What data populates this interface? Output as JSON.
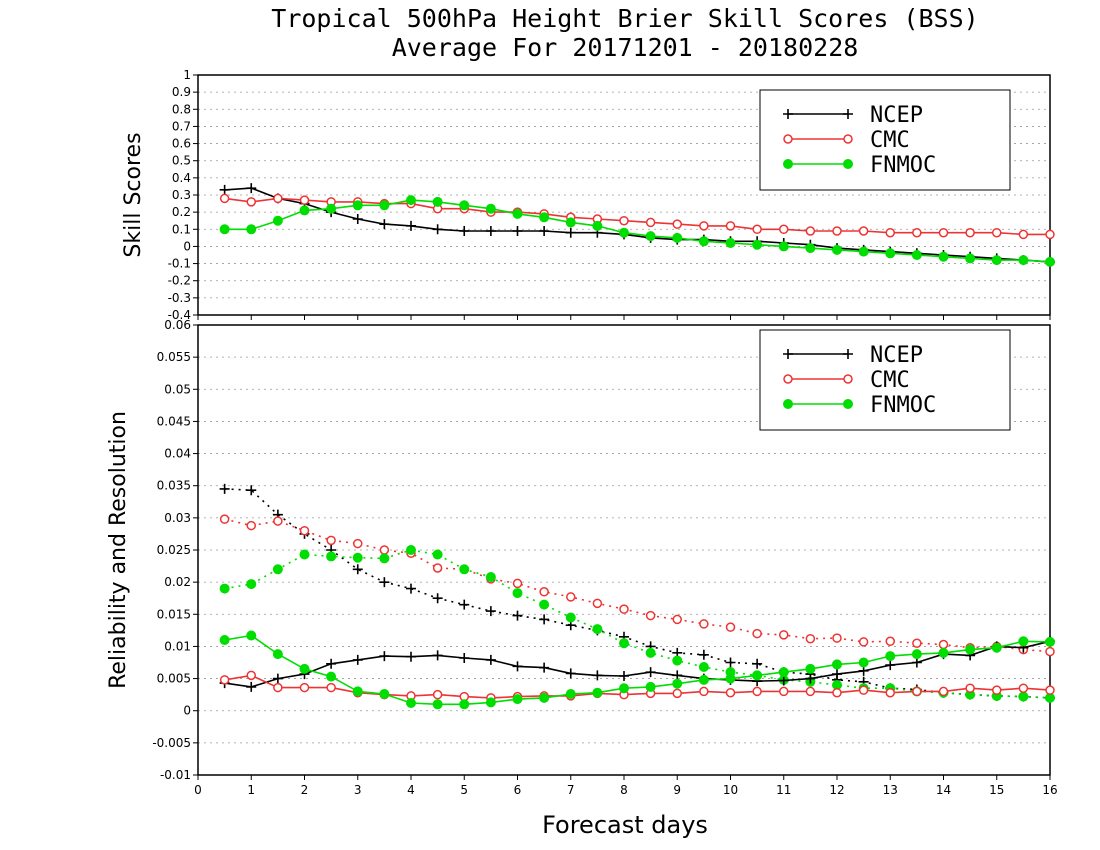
{
  "title_line1": "Tropical 500hPa Height Brier Skill Scores (BSS)",
  "title_line2": "Average For 20171201 - 20180228",
  "xlabel": "Forecast days",
  "colors": {
    "NCEP": "#000000",
    "CMC": "#ee3333",
    "FNMOC": "#00dd00"
  },
  "chart_data": [
    {
      "type": "line",
      "ylabel": "Skill Scores",
      "xlim": [
        0,
        16
      ],
      "ylim": [
        -0.4,
        1
      ],
      "x_ticks": [
        0,
        1,
        2,
        3,
        4,
        5,
        6,
        7,
        8,
        9,
        10,
        11,
        12,
        13,
        14,
        15,
        16
      ],
      "y_ticks": [
        "-0.4",
        "-0.3",
        "-0.2",
        "-0.1",
        "0",
        "0.1",
        "0.2",
        "0.3",
        "0.4",
        "0.5",
        "0.6",
        "0.7",
        "0.8",
        "0.9",
        "1"
      ],
      "grid": "horizontal dotted",
      "legend": {
        "position": "top-right",
        "entries": [
          "NCEP",
          "CMC",
          "FNMOC"
        ]
      },
      "x": [
        0.5,
        1,
        1.5,
        2,
        2.5,
        3,
        3.5,
        4,
        4.5,
        5,
        5.5,
        6,
        6.5,
        7,
        7.5,
        8,
        8.5,
        9,
        9.5,
        10,
        10.5,
        11,
        11.5,
        12,
        12.5,
        13,
        13.5,
        14,
        14.5,
        15,
        15.5,
        16
      ],
      "series": [
        {
          "name": "NCEP",
          "marker": "plus",
          "line": "solid",
          "values": [
            0.33,
            0.34,
            0.28,
            0.25,
            0.2,
            0.16,
            0.13,
            0.12,
            0.1,
            0.09,
            0.09,
            0.09,
            0.09,
            0.08,
            0.08,
            0.07,
            0.05,
            0.04,
            0.04,
            0.03,
            0.03,
            0.02,
            0.01,
            -0.01,
            -0.02,
            -0.03,
            -0.04,
            -0.05,
            -0.06,
            -0.07,
            -0.08,
            -0.09
          ]
        },
        {
          "name": "CMC",
          "marker": "open-circle",
          "line": "solid",
          "values": [
            0.28,
            0.26,
            0.28,
            0.27,
            0.26,
            0.26,
            0.25,
            0.25,
            0.22,
            0.22,
            0.2,
            0.2,
            0.19,
            0.17,
            0.16,
            0.15,
            0.14,
            0.13,
            0.12,
            0.12,
            0.1,
            0.1,
            0.09,
            0.09,
            0.09,
            0.08,
            0.08,
            0.08,
            0.08,
            0.08,
            0.07,
            0.07
          ]
        },
        {
          "name": "FNMOC",
          "marker": "filled-circle",
          "line": "solid",
          "values": [
            0.1,
            0.1,
            0.15,
            0.21,
            0.22,
            0.24,
            0.24,
            0.27,
            0.26,
            0.24,
            0.22,
            0.19,
            0.17,
            0.14,
            0.12,
            0.08,
            0.06,
            0.05,
            0.03,
            0.02,
            0.01,
            0.0,
            -0.01,
            -0.02,
            -0.03,
            -0.04,
            -0.05,
            -0.06,
            -0.07,
            -0.08,
            -0.08,
            -0.09
          ]
        }
      ]
    },
    {
      "type": "line",
      "ylabel": "Reliability and Resolution",
      "xlim": [
        0,
        16
      ],
      "ylim": [
        -0.01,
        0.06
      ],
      "x_ticks": [
        0,
        1,
        2,
        3,
        4,
        5,
        6,
        7,
        8,
        9,
        10,
        11,
        12,
        13,
        14,
        15,
        16
      ],
      "y_ticks": [
        "-0.01",
        "-0.005",
        "0",
        "0.005",
        "0.01",
        "0.015",
        "0.02",
        "0.025",
        "0.03",
        "0.035",
        "0.04",
        "0.045",
        "0.05",
        "0.055",
        "0.06"
      ],
      "grid": "horizontal dotted",
      "legend": {
        "position": "top-right",
        "entries": [
          "NCEP",
          "CMC",
          "FNMOC"
        ]
      },
      "x": [
        0.5,
        1,
        1.5,
        2,
        2.5,
        3,
        3.5,
        4,
        4.5,
        5,
        5.5,
        6,
        6.5,
        7,
        7.5,
        8,
        8.5,
        9,
        9.5,
        10,
        10.5,
        11,
        11.5,
        12,
        12.5,
        13,
        13.5,
        14,
        14.5,
        15,
        15.5,
        16
      ],
      "series": [
        {
          "name": "NCEP",
          "marker": "plus",
          "line": "dotted",
          "values": [
            0.0345,
            0.0343,
            0.0305,
            0.0275,
            0.025,
            0.022,
            0.02,
            0.019,
            0.0175,
            0.0165,
            0.0155,
            0.0148,
            0.0142,
            0.0133,
            0.0125,
            0.0115,
            0.01,
            0.009,
            0.0087,
            0.0075,
            0.0073,
            0.006,
            0.0057,
            0.0048,
            0.0045,
            0.0035,
            0.0033,
            0.0028,
            0.0025,
            0.0023,
            0.0022,
            0.002
          ]
        },
        {
          "name": "CMC",
          "marker": "open-circle",
          "line": "dotted",
          "values": [
            0.0298,
            0.0288,
            0.0295,
            0.028,
            0.0265,
            0.026,
            0.025,
            0.0245,
            0.0222,
            0.022,
            0.0205,
            0.0198,
            0.0185,
            0.0177,
            0.0167,
            0.0158,
            0.0148,
            0.0142,
            0.0135,
            0.013,
            0.012,
            0.0118,
            0.0112,
            0.0113,
            0.0107,
            0.0108,
            0.0105,
            0.0103,
            0.0098,
            0.01,
            0.0095,
            0.0092
          ]
        },
        {
          "name": "FNMOC",
          "marker": "filled-circle",
          "line": "dotted",
          "values": [
            0.019,
            0.0197,
            0.022,
            0.0243,
            0.024,
            0.0238,
            0.0237,
            0.025,
            0.0243,
            0.022,
            0.0208,
            0.0183,
            0.0165,
            0.0145,
            0.0127,
            0.0105,
            0.009,
            0.0078,
            0.0068,
            0.006,
            0.0055,
            0.0048,
            0.0045,
            0.004,
            0.0035,
            0.0035,
            0.003,
            0.0028,
            0.0025,
            0.0023,
            0.0022,
            0.002
          ]
        },
        {
          "name": "NCEP",
          "marker": "plus",
          "line": "solid",
          "values": [
            0.0043,
            0.0037,
            0.005,
            0.0057,
            0.0073,
            0.0079,
            0.0085,
            0.0084,
            0.0086,
            0.0082,
            0.0079,
            0.0069,
            0.0067,
            0.0058,
            0.0055,
            0.0054,
            0.006,
            0.0055,
            0.005,
            0.0048,
            0.0046,
            0.0047,
            0.005,
            0.0057,
            0.0062,
            0.0071,
            0.0075,
            0.0088,
            0.0086,
            0.01,
            0.0098,
            0.0108
          ]
        },
        {
          "name": "CMC",
          "marker": "open-circle",
          "line": "solid",
          "values": [
            0.0048,
            0.0055,
            0.0036,
            0.0036,
            0.0036,
            0.0028,
            0.0025,
            0.0023,
            0.0025,
            0.0022,
            0.002,
            0.0022,
            0.0023,
            0.0023,
            0.0027,
            0.0025,
            0.0027,
            0.0027,
            0.003,
            0.0028,
            0.003,
            0.003,
            0.003,
            0.0028,
            0.0032,
            0.0028,
            0.003,
            0.003,
            0.0035,
            0.0032,
            0.0035,
            0.0032
          ]
        },
        {
          "name": "FNMOC",
          "marker": "filled-circle",
          "line": "solid",
          "values": [
            0.011,
            0.0117,
            0.0088,
            0.0065,
            0.0053,
            0.003,
            0.0026,
            0.0012,
            0.001,
            0.001,
            0.0013,
            0.0018,
            0.002,
            0.0026,
            0.0028,
            0.0035,
            0.0037,
            0.0042,
            0.0048,
            0.005,
            0.0055,
            0.006,
            0.0065,
            0.0072,
            0.0075,
            0.0085,
            0.0088,
            0.009,
            0.0095,
            0.0098,
            0.0108,
            0.0107
          ]
        }
      ]
    }
  ]
}
